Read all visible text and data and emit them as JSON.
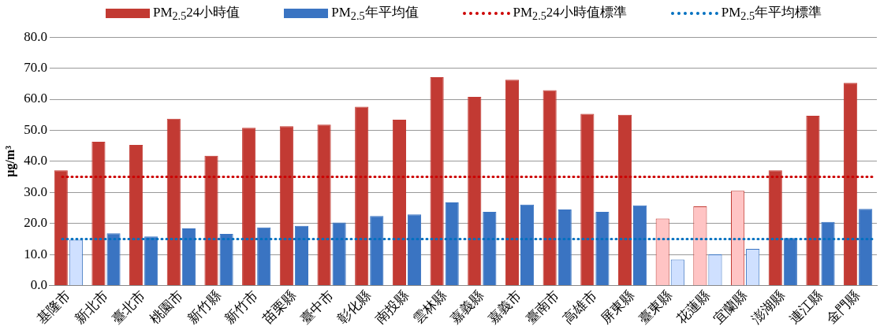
{
  "chart_data": {
    "type": "bar",
    "ylabel": "μg/m³",
    "categories": [
      "基隆市",
      "新北市",
      "臺北市",
      "桃園市",
      "新竹縣",
      "新竹市",
      "苗栗縣",
      "臺中市",
      "彰化縣",
      "南投縣",
      "雲林縣",
      "嘉義縣",
      "嘉義市",
      "臺南市",
      "高雄市",
      "屏東縣",
      "臺東縣",
      "花蓮縣",
      "宜蘭縣",
      "澎湖縣",
      "連江縣",
      "金門縣"
    ],
    "series": [
      {
        "name": "PM$_{2.5}$24小時值",
        "color": "#c23a33",
        "values": [
          37.1,
          46.3,
          45.3,
          53.7,
          41.8,
          50.8,
          51.3,
          51.8,
          57.6,
          53.4,
          67.1,
          60.8,
          66.3,
          62.9,
          55.3,
          55.0,
          21.6,
          25.5,
          30.5,
          37.1,
          54.7,
          65.3
        ],
        "colors": [
          "#c23a33",
          "#c23a33",
          "#c23a33",
          "#c23a33",
          "#c23a33",
          "#c23a33",
          "#c23a33",
          "#c23a33",
          "#c23a33",
          "#c23a33",
          "#c23a33",
          "#c23a33",
          "#c23a33",
          "#c23a33",
          "#c23a33",
          "#c23a33",
          "#ffc4c4",
          "#ffc4c4",
          "#ffc4c4",
          "#c23a33",
          "#c23a33",
          "#c23a33"
        ]
      },
      {
        "name": "PM$_{2.5}$年平均值",
        "color": "#3a74c2",
        "values": [
          14.7,
          16.8,
          15.8,
          18.4,
          16.6,
          18.7,
          19.2,
          20.3,
          22.4,
          22.9,
          26.8,
          23.7,
          26.1,
          24.5,
          23.7,
          25.8,
          8.4,
          10.0,
          11.8,
          15.3,
          20.5,
          24.7
        ],
        "colors": [
          "#cfe0ff",
          "#3a74c2",
          "#3a74c2",
          "#3a74c2",
          "#3a74c2",
          "#3a74c2",
          "#3a74c2",
          "#3a74c2",
          "#3a74c2",
          "#3a74c2",
          "#3a74c2",
          "#3a74c2",
          "#3a74c2",
          "#3a74c2",
          "#3a74c2",
          "#3a74c2",
          "#cfe0ff",
          "#cfe0ff",
          "#cfe0ff",
          "#3a74c2",
          "#3a74c2",
          "#3a74c2"
        ]
      }
    ],
    "ref_lines": [
      {
        "axis": "y",
        "value": 35,
        "label": "PM$_{2.5}$24小時值標準",
        "color": "#cc0000",
        "line_style": "dotted"
      },
      {
        "axis": "y",
        "value": 15,
        "label": "PM$_{2.5}$年平均標準",
        "color": "#0070c0",
        "line_style": "dotted"
      }
    ],
    "ylim": [
      0,
      80
    ],
    "yticks": [
      {
        "value": 0,
        "label": "0.0"
      },
      {
        "value": 10,
        "label": "10.0"
      },
      {
        "value": 20,
        "label": "20.0"
      },
      {
        "value": 30,
        "label": "30.0"
      },
      {
        "value": 40,
        "label": "40.0"
      },
      {
        "value": 50,
        "label": "50.0"
      },
      {
        "value": 60,
        "label": "60.0"
      },
      {
        "value": 70,
        "label": "70.0"
      },
      {
        "value": 80,
        "label": "80.0"
      }
    ],
    "grid": "y",
    "legend": "top"
  }
}
